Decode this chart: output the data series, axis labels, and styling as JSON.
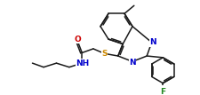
{
  "bg_color": "#ffffff",
  "line_color": "#1a1a1a",
  "atom_colors": {
    "O": "#cc0000",
    "N": "#0000cc",
    "S": "#cc8800",
    "F": "#228822",
    "C": "#1a1a1a"
  },
  "font_size_atom": 6.5,
  "line_width": 1.1
}
